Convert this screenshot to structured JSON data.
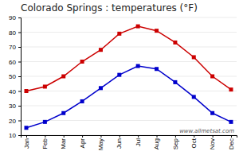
{
  "chart_data": {
    "type": "line",
    "title": "Colorado Springs : temperatures (°F)",
    "categories": [
      "Jan",
      "Feb",
      "Mar",
      "Apr",
      "May",
      "Jun",
      "Jul",
      "Aug",
      "Sep",
      "Oct",
      "Nov",
      "Dec"
    ],
    "series": [
      {
        "color": "#cc0000",
        "marker": "square",
        "values": [
          40,
          43,
          50,
          60,
          68,
          79,
          84,
          81,
          73,
          63,
          50,
          41
        ]
      },
      {
        "color": "#0000cc",
        "marker": "square",
        "values": [
          15,
          19,
          25,
          33,
          42,
          51,
          57,
          55,
          46,
          36,
          25,
          19
        ]
      }
    ],
    "ylim": [
      10,
      90
    ],
    "yticks": [
      10,
      20,
      30,
      40,
      50,
      60,
      70,
      80,
      90
    ],
    "grid": true,
    "annotations": [
      "www.allmetsat.com"
    ]
  }
}
